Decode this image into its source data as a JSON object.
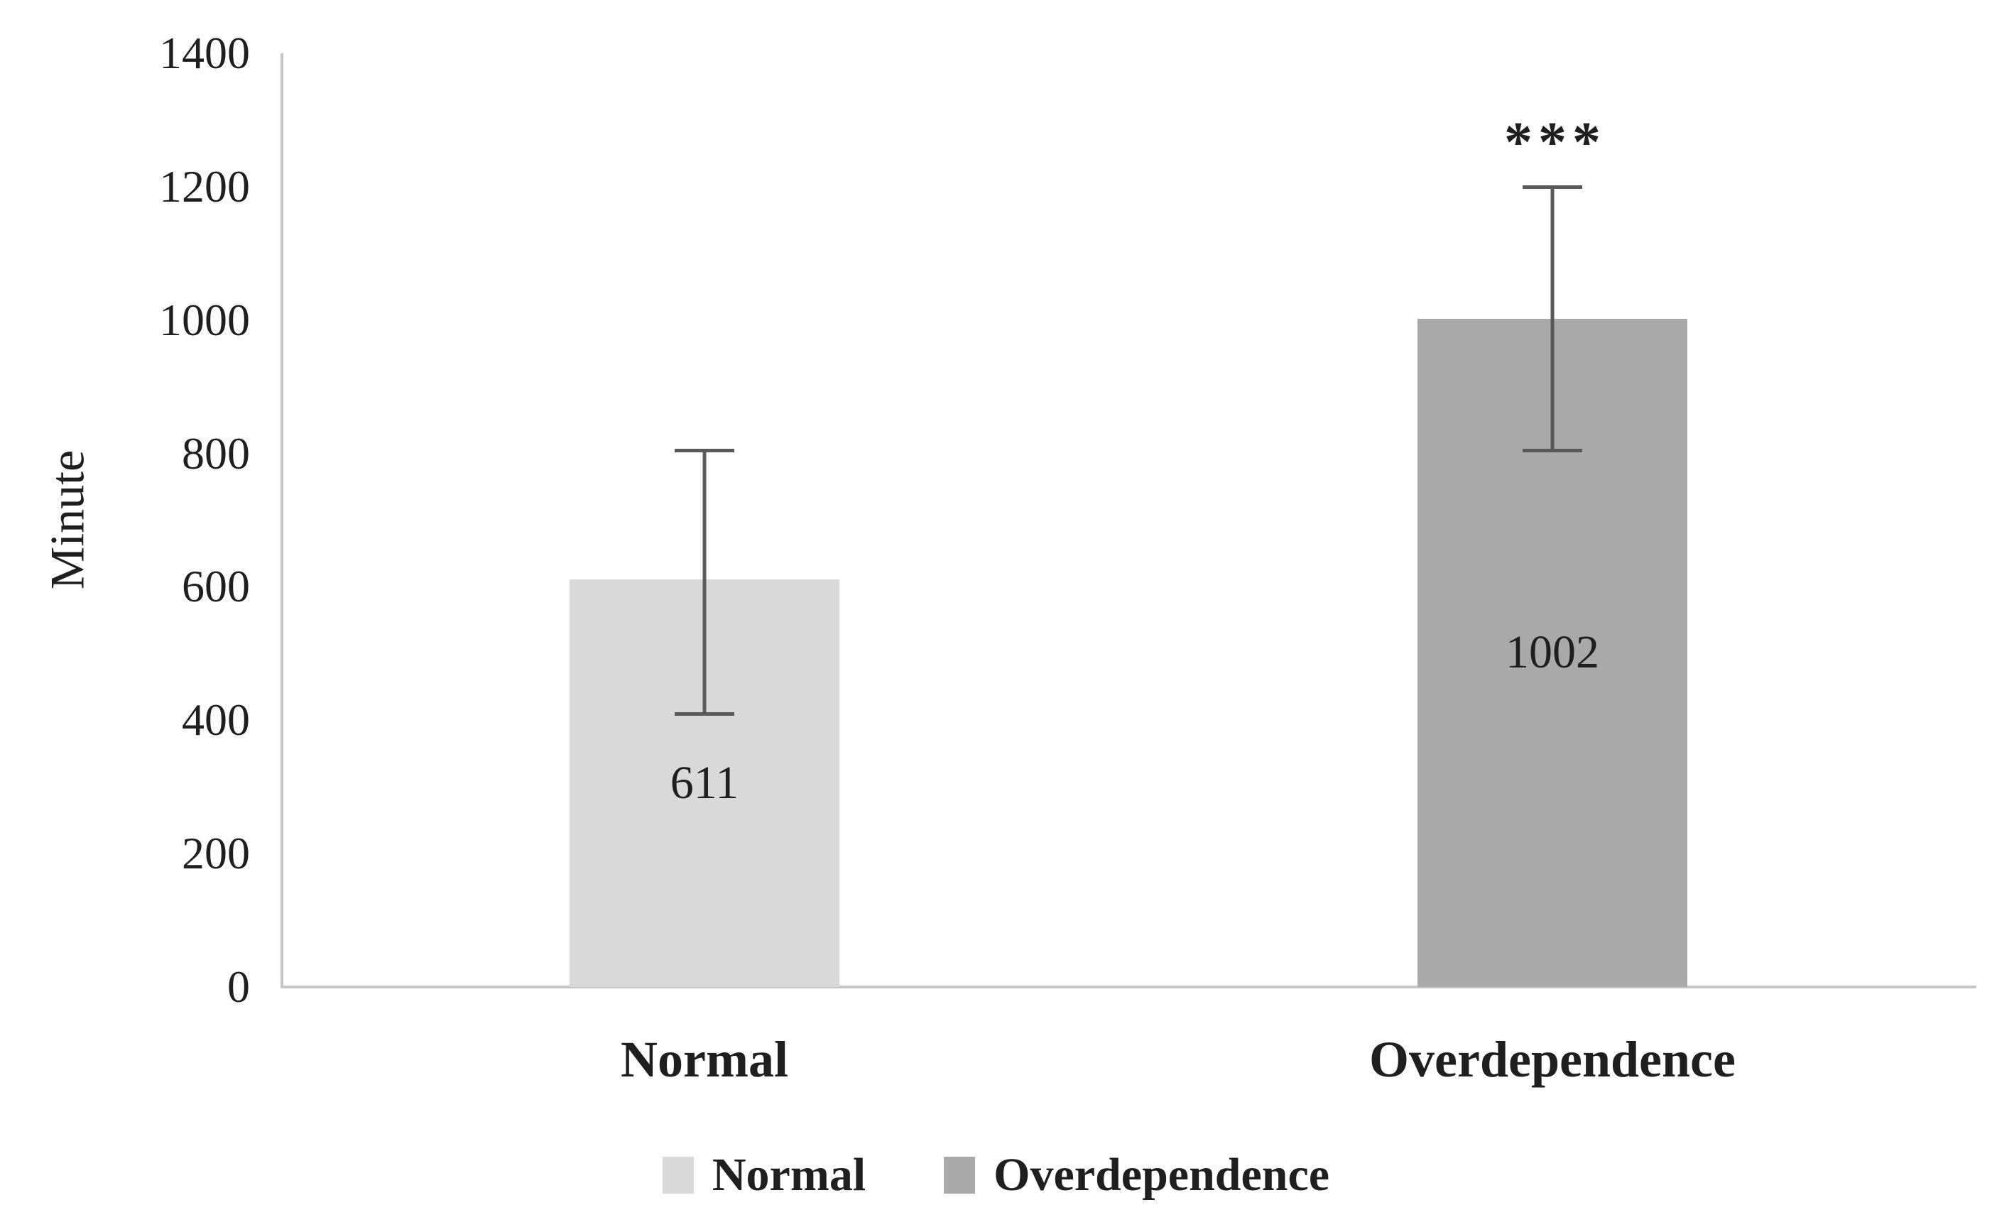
{
  "chart_data": {
    "type": "bar",
    "title": "",
    "xlabel": "",
    "ylabel": "Minute",
    "ylim": [
      0,
      1400
    ],
    "ytick_step": 200,
    "yticks": [
      0,
      200,
      400,
      600,
      800,
      1000,
      1200,
      1400
    ],
    "grid": false,
    "legend_position": "bottom",
    "bar_value_label_position": "inside-center",
    "categories": [
      "Normal",
      "Overdependence"
    ],
    "series": [
      {
        "name": "Normal",
        "value": 611,
        "data_label": "611",
        "error_low": 410,
        "error_high": 805,
        "significance": "",
        "color": "#d9d9d9"
      },
      {
        "name": "Overdependence",
        "value": 1002,
        "data_label": "1002",
        "error_low": 805,
        "error_high": 1200,
        "significance": "***",
        "color": "#a9a9a9"
      }
    ],
    "legend": [
      {
        "label": "Normal",
        "color": "#d9d9d9"
      },
      {
        "label": "Overdependence",
        "color": "#a9a9a9"
      }
    ],
    "colors": {
      "axis_line": "#c6c6c6",
      "error_bar": "#595959",
      "text": "#1f1f1f"
    }
  }
}
